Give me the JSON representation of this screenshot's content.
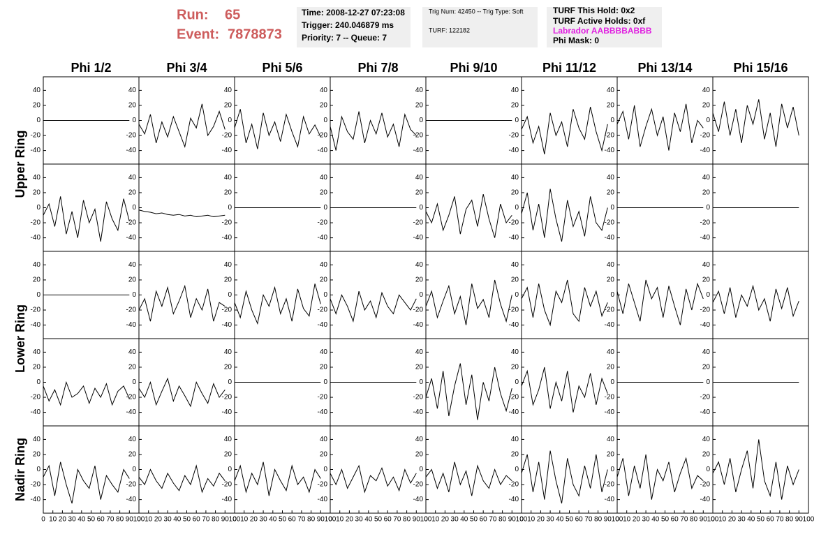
{
  "header": {
    "run_label": "Run:",
    "run": "65",
    "event_label": "Event:",
    "event": "7878873",
    "time_box": [
      "Time: 2008-12-27 07:23:08",
      "Trigger: 240.046879 ms",
      "Priority: 7 -- Queue: 7"
    ],
    "trig_box": [
      "Trig Num: 42450 -- Trig Type: Soft",
      "TURF: 122182"
    ],
    "turf_box": [
      "TURF This Hold: 0x2",
      "TURF Active Holds: 0xf",
      "Labrador AABBBBABBB",
      "Phi Mask: 0"
    ]
  },
  "chart_data": {
    "type": "line",
    "column_titles": [
      "Phi 1/2",
      "Phi 3/4",
      "Phi 5/6",
      "Phi 7/8",
      "Phi 9/10",
      "Phi 11/12",
      "Phi 13/14",
      "Phi 15/16"
    ],
    "row_titles": [
      "Upper Ring",
      "Lower Ring",
      "Nadir Ring"
    ],
    "x": [
      0,
      6,
      12,
      18,
      24,
      30,
      36,
      42,
      48,
      54,
      60,
      66,
      72,
      78,
      84,
      90
    ],
    "xlim": [
      0,
      100
    ],
    "xticks": [
      0,
      10,
      20,
      30,
      40,
      50,
      60,
      70,
      80,
      90,
      100
    ],
    "ylim": [
      -58,
      58
    ],
    "yticks": [
      -40,
      -20,
      0,
      20,
      40
    ],
    "color": "#000000",
    "panels": [
      [
        [
          0,
          0,
          0,
          0,
          0,
          0,
          0,
          0,
          0,
          0,
          0,
          0,
          0,
          0,
          0,
          0
        ],
        [
          -5,
          -18,
          8,
          -30,
          -2,
          -22,
          5,
          -15,
          -35,
          3,
          -10,
          22,
          -20,
          -8,
          12,
          -12
        ],
        [
          -10,
          15,
          -30,
          -5,
          -38,
          10,
          -20,
          -2,
          -28,
          8,
          -15,
          -35,
          5,
          -18,
          -6,
          -22
        ],
        [
          -8,
          -40,
          5,
          -15,
          -25,
          12,
          -30,
          0,
          -18,
          10,
          -22,
          -5,
          -35,
          8,
          -12,
          -20
        ],
        [
          0,
          0,
          0,
          0,
          0,
          0,
          0,
          0,
          0,
          0,
          0,
          0,
          0,
          0,
          0,
          0
        ],
        [
          -12,
          5,
          -30,
          -8,
          -45,
          10,
          -20,
          -2,
          -35,
          15,
          -10,
          -25,
          18,
          -15,
          -40,
          -5
        ],
        [
          -5,
          12,
          -25,
          20,
          -35,
          -8,
          15,
          -20,
          5,
          -40,
          10,
          -15,
          22,
          -30,
          0,
          -10
        ],
        [
          10,
          -15,
          25,
          -20,
          15,
          -30,
          20,
          -5,
          28,
          -25,
          10,
          -35,
          22,
          -10,
          18,
          -20
        ]
      ],
      [
        [
          -10,
          5,
          -25,
          15,
          -35,
          -5,
          -40,
          10,
          -20,
          -2,
          -45,
          8,
          -15,
          -30,
          12,
          -18
        ],
        [
          -3,
          -5,
          -6,
          -8,
          -7,
          -9,
          -10,
          -9,
          -11,
          -10,
          -12,
          -11,
          -10,
          -12,
          -11,
          -10
        ],
        [
          0,
          0,
          0,
          0,
          0,
          0,
          0,
          0,
          0,
          0,
          0,
          0,
          0,
          0,
          0,
          0
        ],
        [
          0,
          0,
          0,
          0,
          0,
          0,
          0,
          0,
          0,
          0,
          0,
          0,
          0,
          0,
          0,
          0
        ],
        [
          -5,
          -20,
          5,
          -30,
          -10,
          15,
          -35,
          -2,
          10,
          -25,
          18,
          -15,
          -40,
          5,
          -20,
          -10
        ],
        [
          -8,
          20,
          -30,
          5,
          -40,
          25,
          -15,
          -45,
          10,
          -25,
          -5,
          -38,
          15,
          -20,
          -30,
          0
        ],
        [
          0,
          0,
          0,
          0,
          0,
          0,
          0,
          0,
          0,
          0,
          0,
          0,
          0,
          0,
          0,
          0
        ],
        [
          0,
          0,
          0,
          0,
          0,
          0,
          0,
          0,
          0,
          0,
          0,
          0,
          0,
          0,
          0,
          0
        ]
      ],
      [
        [
          0,
          0,
          0,
          0,
          0,
          0,
          0,
          0,
          0,
          0,
          0,
          0,
          0,
          0,
          0,
          0
        ],
        [
          -20,
          -5,
          -35,
          5,
          -15,
          10,
          -25,
          -8,
          12,
          -30,
          -5,
          -20,
          8,
          -35,
          -10,
          -15
        ],
        [
          -10,
          -30,
          5,
          -20,
          -38,
          0,
          -15,
          10,
          -25,
          -5,
          -35,
          8,
          -18,
          -28,
          15,
          -12
        ],
        [
          -5,
          -25,
          0,
          -15,
          -35,
          5,
          -20,
          -8,
          -30,
          3,
          -15,
          -25,
          0,
          -10,
          -20,
          -5
        ],
        [
          -15,
          5,
          -30,
          -8,
          12,
          -25,
          -2,
          -40,
          15,
          -18,
          -6,
          -30,
          20,
          -12,
          -35,
          0
        ],
        [
          -5,
          10,
          -30,
          15,
          -20,
          -40,
          5,
          -10,
          20,
          -25,
          -35,
          10,
          -15,
          5,
          -28,
          -10
        ],
        [
          5,
          -25,
          15,
          -10,
          -35,
          20,
          -5,
          10,
          -30,
          12,
          -15,
          -40,
          8,
          -20,
          15,
          -5
        ],
        [
          -10,
          5,
          -25,
          10,
          -30,
          0,
          -15,
          12,
          -20,
          -5,
          -35,
          8,
          -18,
          10,
          -28,
          -8
        ]
      ],
      [
        [
          -5,
          -25,
          -10,
          -30,
          0,
          -20,
          -15,
          -5,
          -28,
          -8,
          -20,
          -2,
          -30,
          -12,
          -5,
          -22
        ],
        [
          -8,
          -20,
          0,
          -30,
          -12,
          5,
          -25,
          -5,
          -18,
          -32,
          0,
          -15,
          -28,
          -2,
          -20,
          -10
        ],
        [
          0,
          0,
          0,
          0,
          0,
          0,
          0,
          0,
          0,
          0,
          0,
          0,
          0,
          0,
          0,
          0
        ],
        [
          0,
          0,
          0,
          0,
          0,
          0,
          0,
          0,
          0,
          0,
          0,
          0,
          0,
          0,
          0,
          0
        ],
        [
          -20,
          5,
          -35,
          15,
          -45,
          -5,
          25,
          -30,
          10,
          -50,
          0,
          -25,
          20,
          -15,
          -38,
          -8
        ],
        [
          -5,
          15,
          -30,
          -10,
          20,
          -35,
          0,
          -25,
          15,
          -40,
          -5,
          -20,
          12,
          -30,
          5,
          -15
        ],
        [
          0,
          0,
          0,
          0,
          0,
          0,
          0,
          0,
          0,
          0,
          0,
          0,
          0,
          0,
          0,
          0
        ],
        [
          0,
          0,
          0,
          0,
          0,
          0,
          0,
          0,
          0,
          0,
          0,
          0,
          0,
          0,
          0,
          0
        ]
      ],
      [
        [
          -10,
          5,
          -35,
          10,
          -20,
          -45,
          0,
          -15,
          -25,
          5,
          -40,
          -8,
          -20,
          -30,
          0,
          -12
        ],
        [
          -10,
          -20,
          0,
          -15,
          -25,
          -5,
          -18,
          -28,
          -8,
          -20,
          5,
          -30,
          -12,
          -22,
          -5,
          -15
        ],
        [
          -15,
          5,
          -30,
          -5,
          -20,
          10,
          -35,
          0,
          -15,
          -28,
          5,
          -20,
          -10,
          -30,
          0,
          -12
        ],
        [
          -5,
          -20,
          0,
          -25,
          -10,
          5,
          -30,
          -8,
          -15,
          2,
          -22,
          -10,
          -28,
          0,
          -18,
          -5
        ],
        [
          -10,
          0,
          -25,
          -5,
          -30,
          10,
          -20,
          -2,
          -35,
          5,
          -15,
          -25,
          0,
          -20,
          -8,
          -15
        ],
        [
          -5,
          20,
          -30,
          10,
          -40,
          25,
          -15,
          -45,
          15,
          -20,
          -35,
          5,
          -25,
          20,
          -30,
          0
        ],
        [
          -10,
          15,
          -35,
          5,
          -25,
          20,
          -40,
          0,
          -15,
          10,
          -30,
          -5,
          15,
          -25,
          -8,
          -15
        ],
        [
          -5,
          10,
          -20,
          15,
          -30,
          0,
          25,
          -25,
          40,
          -15,
          -35,
          10,
          -40,
          5,
          -20,
          0
        ]
      ]
    ]
  }
}
